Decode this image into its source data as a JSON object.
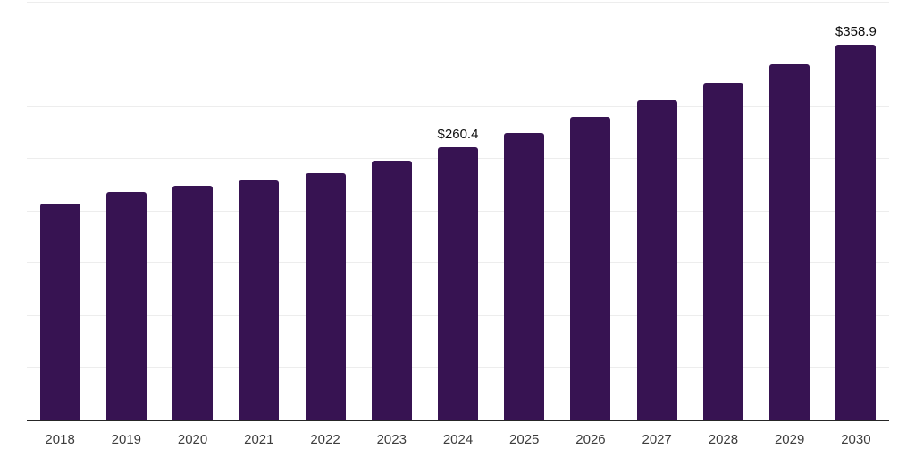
{
  "chart_data": {
    "type": "bar",
    "title": "",
    "xlabel": "",
    "ylabel": "",
    "categories": [
      "2018",
      "2019",
      "2020",
      "2021",
      "2022",
      "2023",
      "2024",
      "2025",
      "2026",
      "2027",
      "2028",
      "2029",
      "2030"
    ],
    "values": [
      206.8,
      218.0,
      223.7,
      229.3,
      235.9,
      247.9,
      260.4,
      274.7,
      289.8,
      305.7,
      322.5,
      340.2,
      358.9
    ],
    "point_labels": [
      "",
      "",
      "",
      "",
      "",
      "",
      "$260.4",
      "",
      "",
      "",
      "",
      "",
      "$358.9"
    ],
    "ylim": [
      0,
      400
    ],
    "grid_step": 50,
    "grid": true,
    "legend": false,
    "y_axis_labels_visible": false
  },
  "colors": {
    "bar": "#371352",
    "grid": "#ededed",
    "axis": "#262626",
    "tick_label": "#3d3d3d",
    "value_label": "#0d0d0d",
    "background": "#ffffff"
  }
}
